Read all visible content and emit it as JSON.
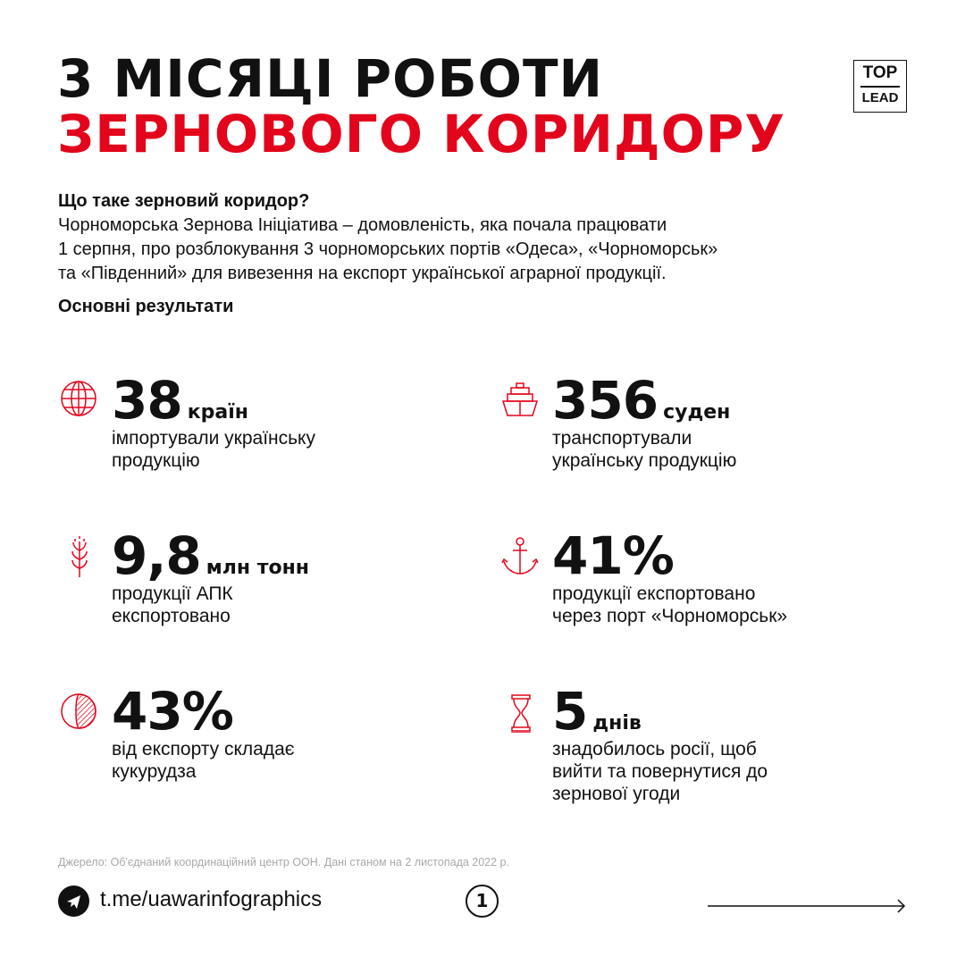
{
  "header": {
    "title_line1": "3 МІСЯЦІ РОБОТИ",
    "title_line2": "ЗЕРНОВОГО КОРИДОРУ",
    "logo": {
      "top": "TOP",
      "bottom": "LEAD"
    }
  },
  "intro": {
    "question": "Що таке зерновий коридор?",
    "lines": [
      "Чорноморська Зернова Ініціатива – домовленість, яка почала працювати",
      "1 серпня, про розблокування 3 чорноморських портів «Одеса», «Чорноморськ»",
      "та «Південний» для вивезення на експорт української аграрної продукції."
    ]
  },
  "results_heading": "Основні результати",
  "stats": [
    {
      "icon": "globe-icon",
      "value": "38",
      "unit": "країн",
      "desc": [
        "імпортували українську",
        "продукцію"
      ]
    },
    {
      "icon": "ship-icon",
      "value": "356",
      "unit": "суден",
      "desc": [
        "транспортували",
        "українську продукцію"
      ]
    },
    {
      "icon": "wheat-icon",
      "value": "9,8",
      "unit": "млн тонн",
      "desc": [
        "продукції АПК",
        "експортовано"
      ]
    },
    {
      "icon": "anchor-icon",
      "value": "41%",
      "unit": "",
      "desc": [
        "продукції експортовано",
        "через порт «Чорноморськ»"
      ]
    },
    {
      "icon": "pie-chart-icon",
      "value": "43%",
      "unit": "",
      "desc": [
        "від експорту складає",
        "кукурудза"
      ]
    },
    {
      "icon": "hourglass-icon",
      "value": "5",
      "unit": "днів",
      "desc": [
        "знадобилось росії, щоб",
        "вийти та повернутися до",
        "зернової угоди"
      ]
    }
  ],
  "footer": {
    "source": "Джерело: Об'єднаний координаційний центр ООН. Дані станом на 2 листопада 2022 р.",
    "link": "t.me/uawarinfographics",
    "page": "1"
  },
  "colors": {
    "accent": "#e3051b",
    "text": "#111111"
  }
}
